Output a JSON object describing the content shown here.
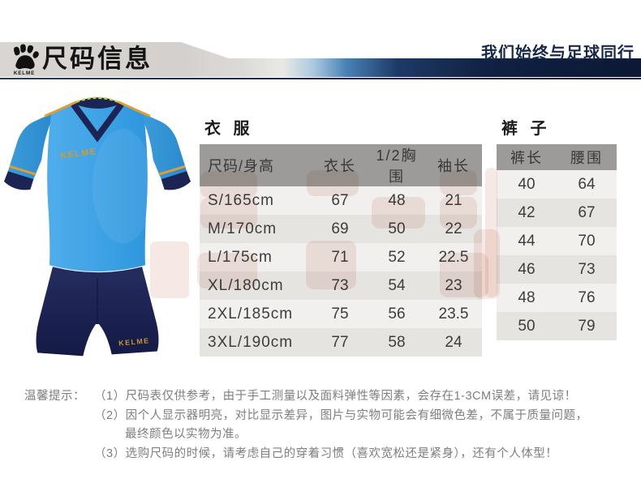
{
  "header": {
    "brand": "KELME",
    "title": "尺码信息",
    "slogan": "我们始终与足球同行"
  },
  "product": {
    "chest_logo": "KELME",
    "shorts_logo": "KELME"
  },
  "tables": {
    "clothes": {
      "title": "衣 服",
      "headers": [
        "尺码/身高",
        "衣长",
        "1/2胸围",
        "袖长"
      ],
      "rows": [
        [
          "S/165cm",
          "67",
          "48",
          "21"
        ],
        [
          "M/170cm",
          "69",
          "50",
          "22"
        ],
        [
          "L/175cm",
          "71",
          "52",
          "22.5"
        ],
        [
          "XL/180cm",
          "73",
          "54",
          "23"
        ],
        [
          "2XL/185cm",
          "75",
          "56",
          "23.5"
        ],
        [
          "3XL/190cm",
          "77",
          "58",
          "24"
        ]
      ]
    },
    "pants": {
      "title": "裤 子",
      "headers": [
        "裤长",
        "腰围"
      ],
      "rows": [
        [
          "40",
          "64"
        ],
        [
          "42",
          "67"
        ],
        [
          "44",
          "70"
        ],
        [
          "46",
          "73"
        ],
        [
          "48",
          "76"
        ],
        [
          "50",
          "79"
        ]
      ]
    }
  },
  "notes": {
    "label": "温馨提示：",
    "lines": [
      "（1）尺码表仅供参考，由于手工测量以及面料弹性等因素，会存在1-3CM误差，请见谅！",
      "（2）因个人显示器明亮，对比显示差异，图片与实物可能会有细微色差，不属于质量问题，",
      "最终颜色以实物为准。",
      "（3）选购尺码的时候，请考虑自己的穿着习惯（喜欢宽松还是紧身），还有个人体型！"
    ]
  },
  "colors": {
    "jersey_blue": "#42a5e8",
    "navy": "#1b2453",
    "gold": "#dc9f35",
    "band_gray": "#d8d5d2",
    "bar_navy": "#0c1834",
    "header_row_gray": "#9c9b99"
  }
}
